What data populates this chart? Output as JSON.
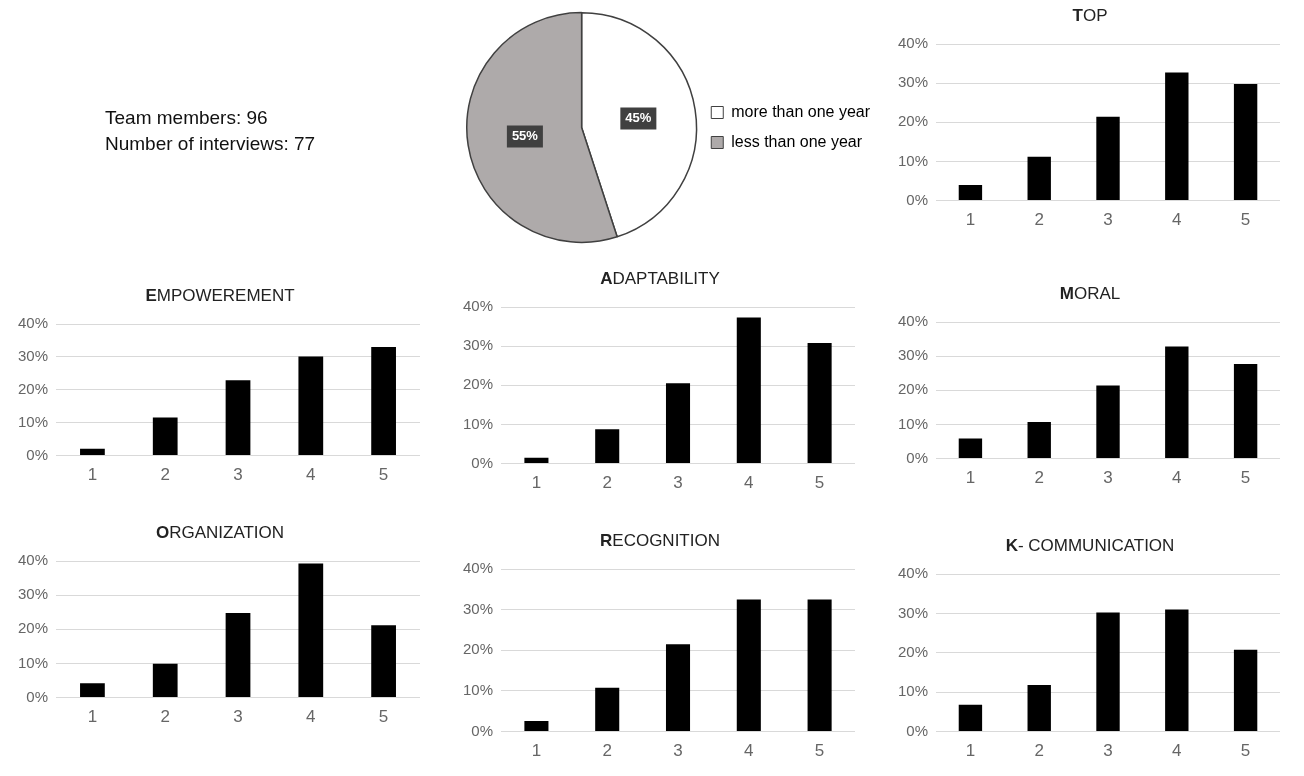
{
  "chart_data": [
    {
      "type": "other",
      "annotations": [
        "Team members: 96",
        "Number of interviews: 77"
      ]
    },
    {
      "type": "pie",
      "categories": [
        "more than one year",
        "less than one year"
      ],
      "values": [
        45,
        55
      ],
      "colors": [
        "#ffffff",
        "#aeaaaa"
      ],
      "value_labels": [
        "45%",
        "55%"
      ],
      "legend": "right"
    },
    {
      "type": "bar",
      "title": "TOP",
      "categories": [
        "1",
        "2",
        "3",
        "4",
        "5"
      ],
      "values": [
        4.0,
        11.2,
        21.4,
        32.7,
        29.8
      ],
      "color": "#000000",
      "ylim": [
        0,
        40
      ],
      "yticks": [
        {
          "value": 0,
          "label": "0%"
        },
        {
          "value": 10,
          "label": "10%"
        },
        {
          "value": 20,
          "label": "20%"
        },
        {
          "value": 30,
          "label": "30%"
        },
        {
          "value": 40,
          "label": "40%"
        }
      ],
      "grid": "y"
    },
    {
      "type": "bar",
      "title": "EMPOWEREMENT",
      "categories": [
        "1",
        "2",
        "3",
        "4",
        "5"
      ],
      "values": [
        2.1,
        11.6,
        22.9,
        30.1,
        33.0
      ],
      "color": "#000000",
      "ylim": [
        0,
        40
      ],
      "yticks": [
        {
          "value": 0,
          "label": "0%"
        },
        {
          "value": 10,
          "label": "10%"
        },
        {
          "value": 20,
          "label": "20%"
        },
        {
          "value": 30,
          "label": "30%"
        },
        {
          "value": 40,
          "label": "40%"
        }
      ],
      "grid": "y"
    },
    {
      "type": "bar",
      "title": "ADAPTABILITY",
      "categories": [
        "1",
        "2",
        "3",
        "4",
        "5"
      ],
      "values": [
        1.5,
        8.8,
        20.5,
        37.3,
        30.8
      ],
      "color": "#000000",
      "ylim": [
        0,
        40
      ],
      "yticks": [
        {
          "value": 0,
          "label": "0%"
        },
        {
          "value": 10,
          "label": "10%"
        },
        {
          "value": 20,
          "label": "20%"
        },
        {
          "value": 30,
          "label": "30%"
        },
        {
          "value": 40,
          "label": "40%"
        }
      ],
      "grid": "y"
    },
    {
      "type": "bar",
      "title": "MORAL",
      "categories": [
        "1",
        "2",
        "3",
        "4",
        "5"
      ],
      "values": [
        5.9,
        10.7,
        21.4,
        32.8,
        27.7
      ],
      "color": "#000000",
      "ylim": [
        0,
        40
      ],
      "yticks": [
        {
          "value": 0,
          "label": "0%"
        },
        {
          "value": 10,
          "label": "10%"
        },
        {
          "value": 20,
          "label": "20%"
        },
        {
          "value": 30,
          "label": "30%"
        },
        {
          "value": 40,
          "label": "40%"
        }
      ],
      "grid": "y"
    },
    {
      "type": "bar",
      "title": "ORGANIZATION",
      "categories": [
        "1",
        "2",
        "3",
        "4",
        "5"
      ],
      "values": [
        4.2,
        9.9,
        24.8,
        39.3,
        21.2
      ],
      "color": "#000000",
      "ylim": [
        0,
        40
      ],
      "yticks": [
        {
          "value": 0,
          "label": "0%"
        },
        {
          "value": 10,
          "label": "10%"
        },
        {
          "value": 20,
          "label": "20%"
        },
        {
          "value": 30,
          "label": "30%"
        },
        {
          "value": 40,
          "label": "40%"
        }
      ],
      "grid": "y"
    },
    {
      "type": "bar",
      "title": "RECOGNITION",
      "categories": [
        "1",
        "2",
        "3",
        "4",
        "5"
      ],
      "values": [
        2.6,
        10.8,
        21.5,
        32.5,
        32.5
      ],
      "color": "#000000",
      "ylim": [
        0,
        40
      ],
      "yticks": [
        {
          "value": 0,
          "label": "0%"
        },
        {
          "value": 10,
          "label": "10%"
        },
        {
          "value": 20,
          "label": "20%"
        },
        {
          "value": 30,
          "label": "30%"
        },
        {
          "value": 40,
          "label": "40%"
        }
      ],
      "grid": "y"
    },
    {
      "type": "bar",
      "title": "K- COMMUNICATION",
      "categories": [
        "1",
        "2",
        "3",
        "4",
        "5"
      ],
      "values": [
        6.8,
        11.8,
        30.2,
        31.0,
        20.8
      ],
      "color": "#000000",
      "ylim": [
        0,
        40
      ],
      "yticks": [
        {
          "value": 0,
          "label": "0%"
        },
        {
          "value": 10,
          "label": "10%"
        },
        {
          "value": 20,
          "label": "20%"
        },
        {
          "value": 30,
          "label": "30%"
        },
        {
          "value": 40,
          "label": "40%"
        }
      ],
      "grid": "y"
    }
  ]
}
